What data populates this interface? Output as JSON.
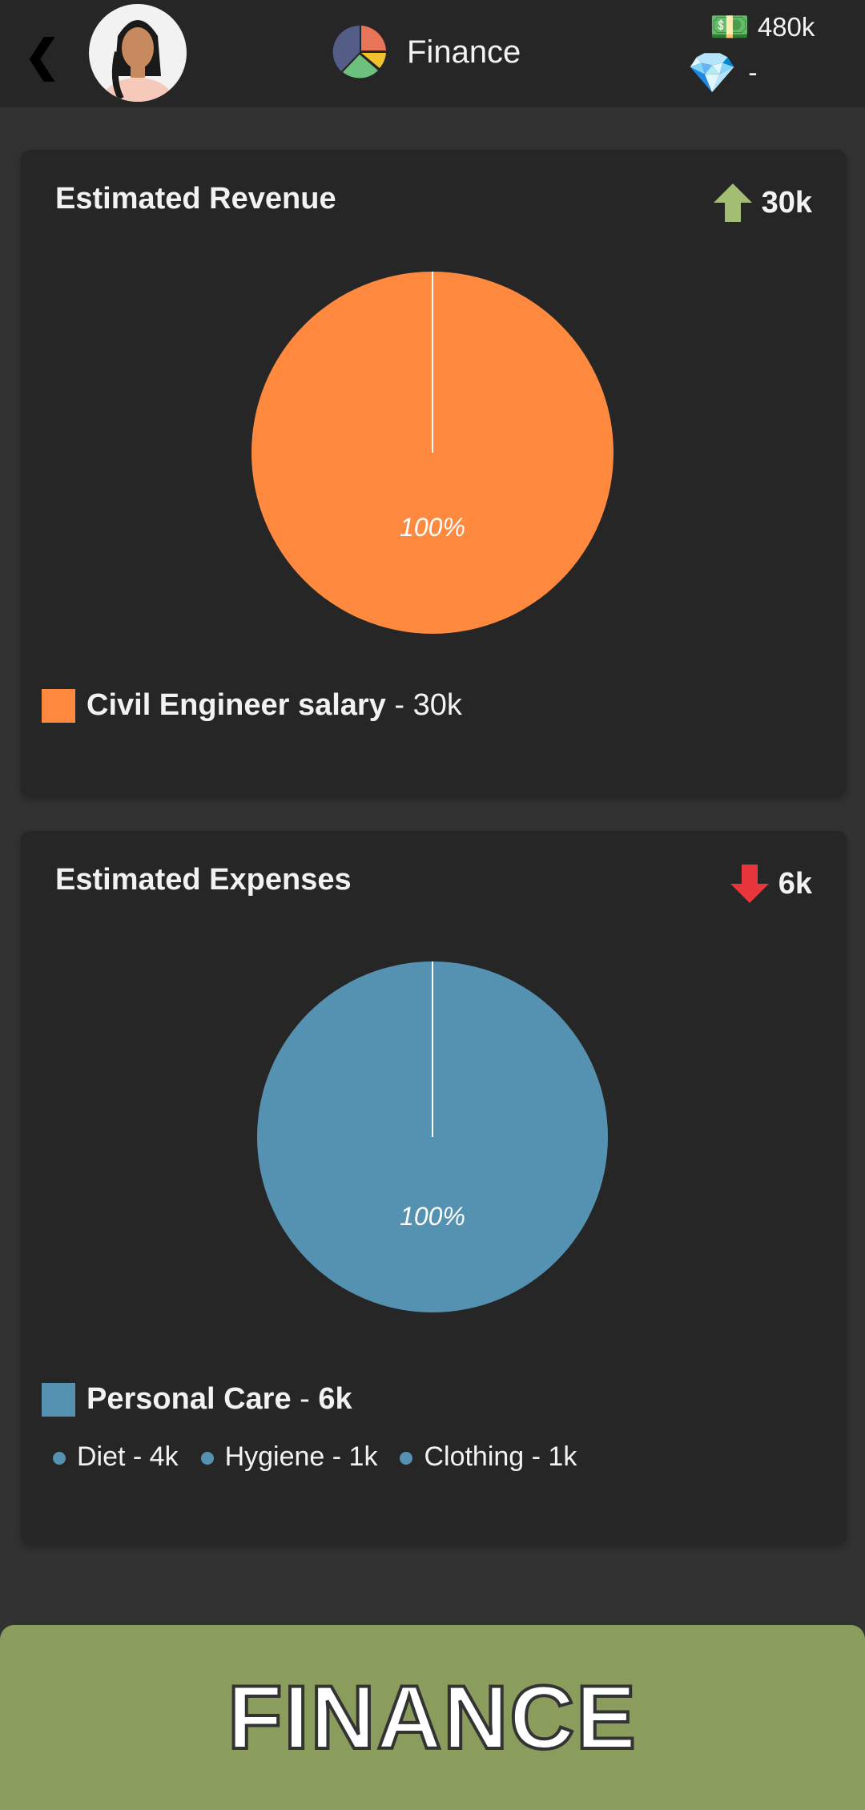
{
  "header": {
    "title": "Finance",
    "money": "480k",
    "gems": "-"
  },
  "revenue": {
    "title": "Estimated Revenue",
    "amount": "30k",
    "pie_label": "100%",
    "legend": {
      "label": "Civil Engineer salary",
      "sep": " - ",
      "value": "30k"
    },
    "color": "#ff8a3f"
  },
  "expenses": {
    "title": "Estimated Expenses",
    "amount": "6k",
    "pie_label": "100%",
    "legend": {
      "label": "Personal Care",
      "sep": " - ",
      "value": "6k"
    },
    "color": "#5592b2",
    "items": [
      {
        "label": "Diet - 4k"
      },
      {
        "label": "Hygiene - 1k"
      },
      {
        "label": "Clothing - 1k"
      }
    ]
  },
  "footer": {
    "label": "FINANCE"
  },
  "chart_data": [
    {
      "type": "pie",
      "title": "Estimated Revenue",
      "categories": [
        "Civil Engineer salary"
      ],
      "values": [
        30
      ],
      "percent_labels": [
        "100%"
      ]
    },
    {
      "type": "pie",
      "title": "Estimated Expenses",
      "categories": [
        "Personal Care"
      ],
      "values": [
        6
      ],
      "percent_labels": [
        "100%"
      ],
      "breakdown": {
        "Diet": 4,
        "Hygiene": 1,
        "Clothing": 1
      }
    }
  ]
}
